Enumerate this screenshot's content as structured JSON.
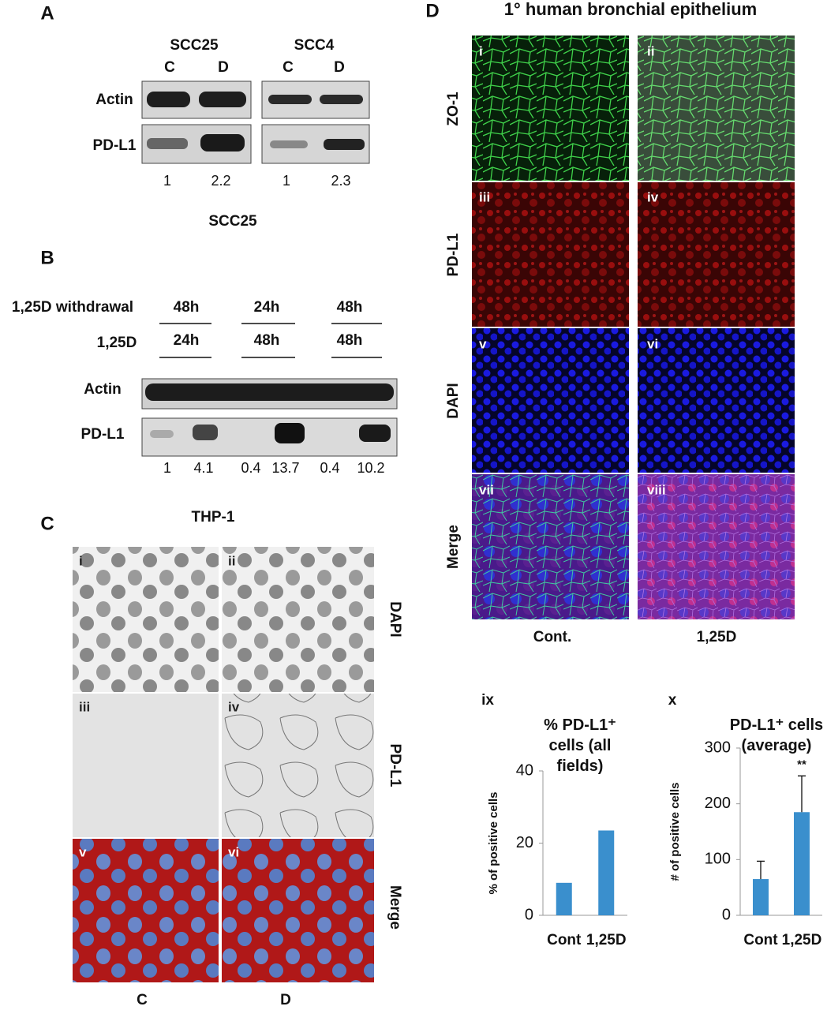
{
  "panel_a": {
    "label": "A",
    "cell_lines": [
      "SCC25",
      "SCC4"
    ],
    "lanes": [
      "C",
      "D",
      "C",
      "D"
    ],
    "rows": [
      "Actin",
      "PD-L1"
    ],
    "quantification": [
      1,
      2.2,
      1,
      2.3
    ]
  },
  "panel_b": {
    "label": "B",
    "cell_line": "SCC25",
    "withdrawal_label": "1,25D withdrawal",
    "withdrawal_times": [
      "48h",
      "24h",
      "48h"
    ],
    "treatment_label": "1,25D",
    "treatment_times": [
      "24h",
      "48h",
      "48h"
    ],
    "rows": [
      "Actin",
      "PD-L1"
    ],
    "quantification": [
      1,
      4.1,
      0.4,
      13.7,
      0.4,
      10.2
    ]
  },
  "panel_c": {
    "label": "C",
    "title": "THP-1",
    "image_labels": [
      "i",
      "ii",
      "iii",
      "iv",
      "v",
      "vi"
    ],
    "rows": [
      "DAPI",
      "PD-L1",
      "Merge"
    ],
    "columns": [
      "C",
      "D"
    ]
  },
  "panel_d": {
    "label": "D",
    "title": "1° human bronchial epithelium",
    "image_labels": [
      "i",
      "ii",
      "iii",
      "iv",
      "v",
      "vi",
      "vii",
      "viii"
    ],
    "rows": [
      "ZO-1",
      "PD-L1",
      "DAPI",
      "Merge"
    ],
    "columns": [
      "Cont.",
      "1,25D"
    ]
  },
  "chart_data": [
    {
      "type": "bar",
      "label": "ix",
      "title": "% PD-L1⁺ cells (all fields)",
      "y_label": "% of positive cells",
      "categories": [
        "Cont",
        "1,25D"
      ],
      "values": [
        9,
        23.5
      ],
      "color": "#3a8fcd",
      "ylim": [
        0,
        40
      ],
      "yticks": [
        0,
        20,
        40
      ]
    },
    {
      "type": "bar",
      "label": "x",
      "title": "PD-L1⁺ cells (average)",
      "y_label": "# of positive cells",
      "categories": [
        "Cont",
        "1,25D"
      ],
      "values": [
        65,
        185
      ],
      "errors": [
        32,
        65
      ],
      "annotation": "**",
      "color": "#3a8fcd",
      "ylim": [
        0,
        300
      ],
      "yticks": [
        0,
        100,
        200,
        300
      ]
    }
  ]
}
